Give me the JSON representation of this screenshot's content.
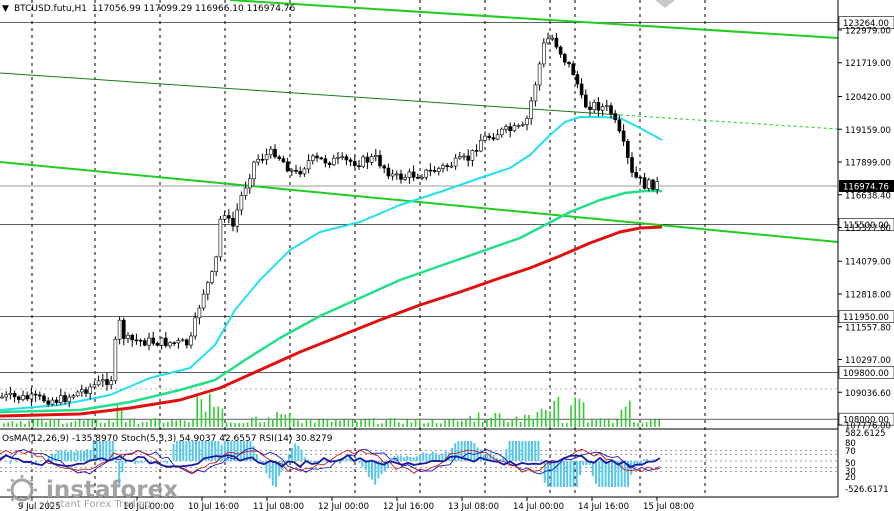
{
  "header": {
    "menu_glyph": "▼",
    "symbol_info": "BTCUSD.futu,H1",
    "ohlc_text": "117056.99 117099.29 116966.10 116974.76"
  },
  "price_axis": {
    "labels": [
      {
        "value": 122979,
        "text": "122979.00"
      },
      {
        "value": 121719,
        "text": "121719.00"
      },
      {
        "value": 120420,
        "text": "120420.00"
      },
      {
        "value": 119159,
        "text": "119159.00"
      },
      {
        "value": 117899,
        "text": "117899.00"
      },
      {
        "value": 116638,
        "text": "116638.40"
      },
      {
        "value": 115377,
        "text": "115377.80"
      },
      {
        "value": 114079,
        "text": "114079.00"
      },
      {
        "value": 112818,
        "text": "112818.00"
      },
      {
        "value": 111557,
        "text": "111557.80"
      },
      {
        "value": 110297,
        "text": "110297.00"
      },
      {
        "value": 109036,
        "text": "109036.60"
      },
      {
        "value": 107776,
        "text": "107776.00"
      }
    ],
    "levels": [
      {
        "value": 123264,
        "text": "123264.00"
      },
      {
        "value": 115500,
        "text": "115500.00"
      },
      {
        "value": 111950,
        "text": "111950.00"
      },
      {
        "value": 109800,
        "text": "109800.00"
      },
      {
        "value": 108000,
        "text": "108000.00"
      }
    ],
    "current": {
      "value": 116974.76,
      "text": "116974.76"
    }
  },
  "indicator": {
    "header_text": "OsMA(12,26,9) -135.8970 Stoch(5,3,3) 54.9037 42.6557 RSI(14) 30.8279",
    "axis_labels": [
      {
        "text": "582.6125"
      },
      {
        "text": "80"
      },
      {
        "text": "70"
      },
      {
        "text": "50"
      },
      {
        "text": "30"
      },
      {
        "text": "20"
      },
      {
        "text": "-526.6171"
      }
    ]
  },
  "time_axis": {
    "labels": [
      "9 Jul 2025",
      "10 Jul 00:00",
      "10 Jul 16:00",
      "11 Jul 08:00",
      "12 Jul 00:00",
      "12 Jul 16:00",
      "13 Jul 08:00",
      "14 Jul 00:00",
      "14 Jul 16:00",
      "15 Jul 08:00"
    ]
  },
  "watermark": {
    "brand": "instaforex",
    "tagline": "Instant Forex Trading"
  },
  "colors": {
    "background": "#ffffff",
    "candle": "#000000",
    "ma_fast": "#22e0f0",
    "ma_mid": "#22e08a",
    "ma_slow": "#e01010",
    "channel": "#22cc22",
    "channel_dark": "#1a7a1a",
    "volume": "#33cc33",
    "osma": "#55c8ee",
    "stoch_main": "#0000cc",
    "stoch_signal": "#cc0000",
    "rsi": "#1a1aa0",
    "current_price_box": "#000000",
    "level_box": "#ffffff"
  }
}
